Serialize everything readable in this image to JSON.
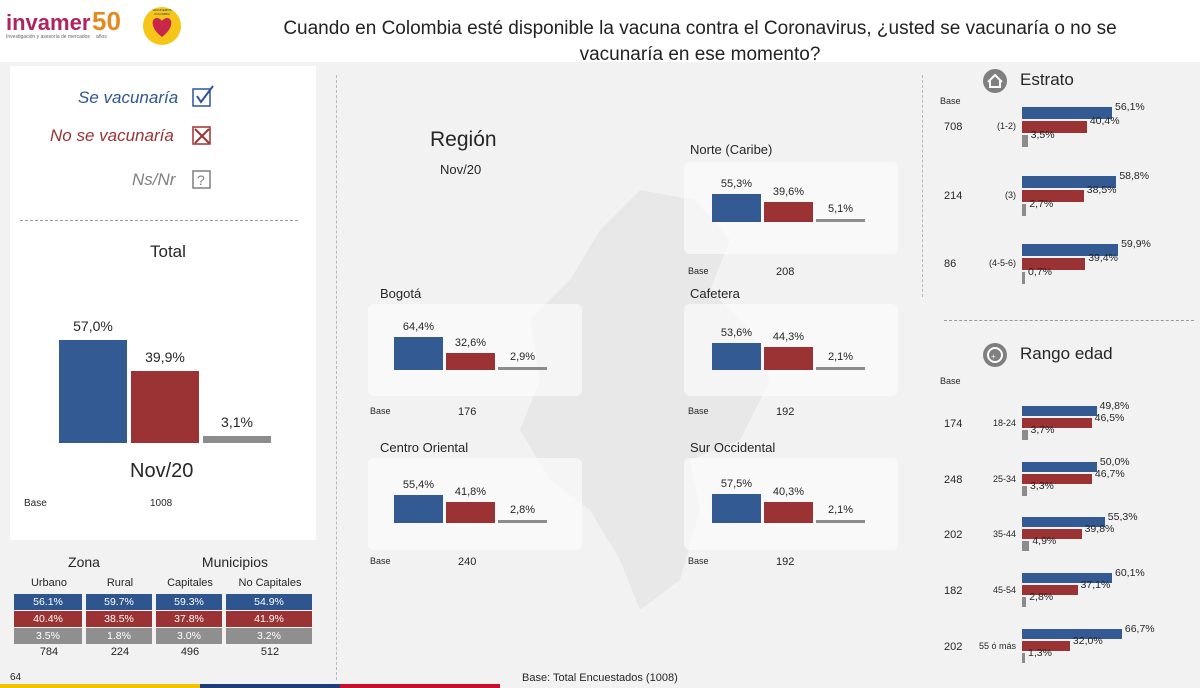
{
  "header": {
    "logo_text": "invamer",
    "logo_number": "50",
    "logo_tagline": "Investigación y asesoría de mercados",
    "logo_years": "años",
    "badge_text": "VACUNEMOS COLOMBIA",
    "title_line1": "Cuando en Colombia esté disponible la vacuna contra el Coronavirus, ¿usted se vacunaría o no se",
    "title_line2": "vacunaría en ese momento?"
  },
  "legend": {
    "yes": "Se vacunaría",
    "no": "No se vacunaría",
    "ns": "Ns/Nr"
  },
  "colors": {
    "yes": "#335a93",
    "no": "#9b3234",
    "ns": "#8c8c8c"
  },
  "total": {
    "title": "Total",
    "period": "Nov/20",
    "base_label": "Base",
    "base_value": "1008"
  },
  "region": {
    "title": "Región",
    "period": "Nov/20",
    "base_label": "Base"
  },
  "estrato": {
    "title": "Estrato",
    "base_label": "Base"
  },
  "edad": {
    "title": "Rango edad",
    "base_label": "Base"
  },
  "zona": {
    "title_zona": "Zona",
    "title_municipios": "Municipios",
    "columns": [
      "Urbano",
      "Rural",
      "Capitales",
      "No Capitales"
    ],
    "row_yes": [
      "56.1%",
      "59.7%",
      "59.3%",
      "54.9%"
    ],
    "row_no": [
      "40.4%",
      "38.5%",
      "37.8%",
      "41.9%"
    ],
    "row_ns": [
      "3.5%",
      "1.8%",
      "3.0%",
      "3.2%"
    ],
    "bases": [
      "784",
      "224",
      "496",
      "512"
    ]
  },
  "footer": {
    "page_number": "64",
    "base_note": "Base: Total Encuestados (1008)"
  },
  "chart_data": [
    {
      "type": "bar",
      "name": "Total",
      "categories": [
        "Se vacunaría",
        "No se vacunaría",
        "Ns/Nr"
      ],
      "values": [
        57.0,
        39.9,
        3.1
      ],
      "labels": [
        "57,0%",
        "39,9%",
        "3,1%"
      ],
      "base": "1008"
    },
    {
      "type": "bar",
      "name": "Región",
      "groups": [
        {
          "region": "Norte (Caribe)",
          "values": [
            55.3,
            39.6,
            5.1
          ],
          "labels": [
            "55,3%",
            "39,6%",
            "5,1%"
          ],
          "base": "208"
        },
        {
          "region": "Bogotá",
          "values": [
            64.4,
            32.6,
            2.9
          ],
          "labels": [
            "64,4%",
            "32,6%",
            "2,9%"
          ],
          "base": "176"
        },
        {
          "region": "Cafetera",
          "values": [
            53.6,
            44.3,
            2.1
          ],
          "labels": [
            "53,6%",
            "44,3%",
            "2,1%"
          ],
          "base": "192"
        },
        {
          "region": "Centro Oriental",
          "values": [
            55.4,
            41.8,
            2.8
          ],
          "labels": [
            "55,4%",
            "41,8%",
            "2,8%"
          ],
          "base": "240"
        },
        {
          "region": "Sur Occidental",
          "values": [
            57.5,
            40.3,
            2.1
          ],
          "labels": [
            "57,5%",
            "40,3%",
            "2,1%"
          ],
          "base": "192"
        }
      ]
    },
    {
      "type": "bar",
      "name": "Estrato",
      "orientation": "horizontal",
      "groups": [
        {
          "category": "(1-2)",
          "values": [
            56.1,
            40.4,
            3.5
          ],
          "labels": [
            "56,1%",
            "40,4%",
            "3,5%"
          ],
          "base": "708"
        },
        {
          "category": "(3)",
          "values": [
            58.8,
            38.5,
            2.7
          ],
          "labels": [
            "58,8%",
            "38,5%",
            "2,7%"
          ],
          "base": "214"
        },
        {
          "category": "(4-5-6)",
          "values": [
            59.9,
            39.4,
            0.7
          ],
          "labels": [
            "59,9%",
            "39,4%",
            "0,7%"
          ],
          "base": "86"
        }
      ]
    },
    {
      "type": "bar",
      "name": "Rango edad",
      "orientation": "horizontal",
      "groups": [
        {
          "category": "18-24",
          "values": [
            49.8,
            46.5,
            3.7
          ],
          "labels": [
            "49,8%",
            "46,5%",
            "3,7%"
          ],
          "base": "174"
        },
        {
          "category": "25-34",
          "values": [
            50.0,
            46.7,
            3.3
          ],
          "labels": [
            "50,0%",
            "46,7%",
            "3,3%"
          ],
          "base": "248"
        },
        {
          "category": "35-44",
          "values": [
            55.3,
            39.8,
            4.9
          ],
          "labels": [
            "55,3%",
            "39,8%",
            "4,9%"
          ],
          "base": "202"
        },
        {
          "category": "45-54",
          "values": [
            60.1,
            37.1,
            2.8
          ],
          "labels": [
            "60,1%",
            "37,1%",
            "2,8%"
          ],
          "base": "182"
        },
        {
          "category": "55 ó más",
          "values": [
            66.7,
            32.0,
            1.3
          ],
          "labels": [
            "66,7%",
            "32,0%",
            "1,3%"
          ],
          "base": "202"
        }
      ]
    }
  ]
}
